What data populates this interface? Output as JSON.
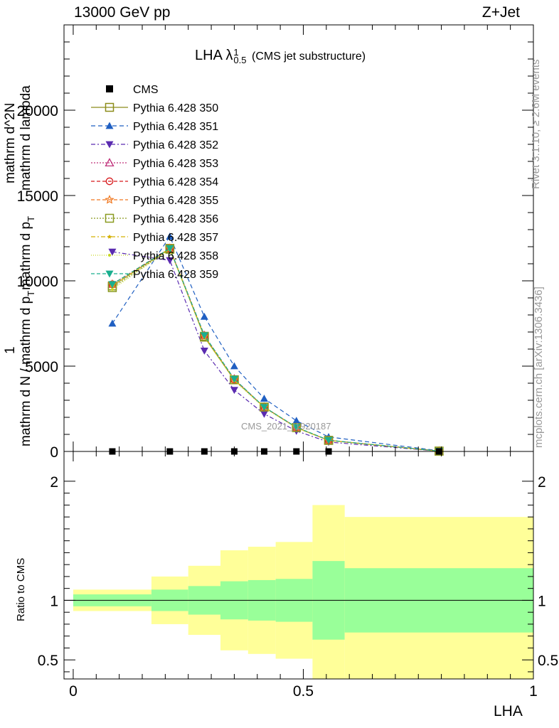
{
  "header": {
    "left": "13000 GeV pp",
    "right": "Z+Jet"
  },
  "side": {
    "rivet": "Rivet 3.1.10, ≥ 2.6M events",
    "mcplots": "mcplots.cern.ch [arXiv:1306.3436]"
  },
  "watermark": "CMS_2021_I1920187",
  "chart_data": [
    {
      "type": "line",
      "title": "LHA λ",
      "title_sup": "1",
      "title_sub": "0.5",
      "title_suffix": "(CMS jet substructure)",
      "ylabel_parts": [
        "1",
        "mathrm d N / mathrm d p",
        "T",
        "mathrm d p",
        "T",
        "mathrm d^2N",
        "mathrm d lambda"
      ],
      "ylim": [
        0,
        25000
      ],
      "xlim": [
        -0.02,
        1.0
      ],
      "y_ticks": [
        0,
        5000,
        10000,
        15000,
        20000
      ],
      "y_tick_labels": [
        "0",
        "5000",
        "10000",
        "15000",
        "20000"
      ],
      "legend_position": "top-left",
      "grid": false,
      "cms_x": [
        0.085,
        0.21,
        0.285,
        0.35,
        0.415,
        0.485,
        0.555,
        0.795
      ],
      "cms_y": [
        0,
        0,
        0,
        0,
        0,
        0,
        0,
        0
      ],
      "series": [
        {
          "name": "CMS",
          "marker": "filled-square",
          "color": "#000000",
          "dash": "none"
        },
        {
          "name": "Pythia 6.428 350",
          "marker": "open-square",
          "color": "#8c8c1a",
          "dash": "none",
          "x": [
            0.085,
            0.21,
            0.285,
            0.35,
            0.415,
            0.485,
            0.555,
            0.795
          ],
          "y": [
            9700,
            11900,
            6700,
            4200,
            2600,
            1400,
            650,
            20
          ]
        },
        {
          "name": "Pythia 6.428 351",
          "marker": "filled-triangle-up",
          "color": "#1f5fc2",
          "dash": "6,4",
          "x": [
            0.085,
            0.21,
            0.285,
            0.35,
            0.415,
            0.485,
            0.555,
            0.795
          ],
          "y": [
            7500,
            12600,
            7900,
            5000,
            3100,
            1800,
            850,
            40
          ]
        },
        {
          "name": "Pythia 6.428 352",
          "marker": "filled-triangle-down",
          "color": "#5a2bb0",
          "dash": "6,3,2,3",
          "x": [
            0.085,
            0.21,
            0.285,
            0.35,
            0.415,
            0.485,
            0.555,
            0.795
          ],
          "y": [
            11700,
            11200,
            5900,
            3600,
            2200,
            1200,
            550,
            15
          ]
        },
        {
          "name": "Pythia 6.428 353",
          "marker": "open-triangle-up",
          "color": "#c0307a",
          "dash": "2,2",
          "x": [
            0.085,
            0.21,
            0.285,
            0.35,
            0.415,
            0.485,
            0.555,
            0.795
          ],
          "y": [
            9800,
            11900,
            6800,
            4250,
            2600,
            1400,
            650,
            20
          ]
        },
        {
          "name": "Pythia 6.428 354",
          "marker": "open-circle",
          "color": "#d7191c",
          "dash": "5,3",
          "x": [
            0.085,
            0.21,
            0.285,
            0.35,
            0.415,
            0.485,
            0.555,
            0.795
          ],
          "y": [
            9800,
            11900,
            6800,
            4200,
            2600,
            1400,
            650,
            20
          ]
        },
        {
          "name": "Pythia 6.428 355",
          "marker": "open-star",
          "color": "#f07820",
          "dash": "5,3",
          "x": [
            0.085,
            0.21,
            0.285,
            0.35,
            0.415,
            0.485,
            0.555,
            0.795
          ],
          "y": [
            9800,
            11900,
            6750,
            4200,
            2600,
            1400,
            650,
            20
          ]
        },
        {
          "name": "Pythia 6.428 356",
          "marker": "open-square",
          "color": "#8a9a20",
          "dash": "2,2",
          "x": [
            0.085,
            0.21,
            0.285,
            0.35,
            0.415,
            0.485,
            0.555,
            0.795
          ],
          "y": [
            9600,
            11850,
            6750,
            4200,
            2600,
            1400,
            650,
            20
          ]
        },
        {
          "name": "Pythia 6.428 357",
          "marker": "small-star",
          "color": "#d4b000",
          "dash": "6,3,2,3",
          "x": [
            0.085,
            0.21,
            0.285,
            0.35,
            0.415,
            0.485,
            0.555,
            0.795
          ],
          "y": [
            9700,
            11900,
            6750,
            4200,
            2600,
            1400,
            650,
            20
          ]
        },
        {
          "name": "Pythia 6.428 358",
          "marker": "small-dot",
          "color": "#c8d820",
          "dash": "1,2",
          "x": [
            0.085,
            0.21,
            0.285,
            0.35,
            0.415,
            0.485,
            0.555,
            0.795
          ],
          "y": [
            9500,
            11850,
            6700,
            4150,
            2550,
            1380,
            640,
            20
          ]
        },
        {
          "name": "Pythia 6.428 359",
          "marker": "filled-triangle-down",
          "color": "#1aaf8f",
          "dash": "5,3",
          "x": [
            0.085,
            0.21,
            0.285,
            0.35,
            0.415,
            0.485,
            0.555,
            0.795
          ],
          "y": [
            9800,
            11900,
            6800,
            4250,
            2600,
            1420,
            660,
            20
          ]
        }
      ]
    },
    {
      "type": "area",
      "ylabel": "Ratio to CMS",
      "xlabel": "LHA",
      "ylim": [
        0.34,
        2.25
      ],
      "xlim": [
        -0.02,
        1.0
      ],
      "reference_line": 1,
      "y_ticks": [
        0.5,
        1,
        2
      ],
      "y_tick_labels": [
        "0.5",
        "1",
        "2"
      ],
      "x_ticks": [
        0,
        0.5,
        1
      ],
      "x_tick_labels": [
        "0",
        "0.5",
        "1"
      ],
      "bin_edges": [
        0,
        0.17,
        0.25,
        0.32,
        0.38,
        0.44,
        0.52,
        0.59,
        1.0
      ],
      "inner_band_color": "#99ff99",
      "outer_band_color": "#ffff99",
      "inner_band": {
        "lo": [
          0.95,
          0.91,
          0.88,
          0.84,
          0.83,
          0.82,
          0.67,
          0.73
        ],
        "hi": [
          1.05,
          1.09,
          1.12,
          1.16,
          1.17,
          1.18,
          1.33,
          1.27
        ]
      },
      "outer_band": {
        "lo": [
          0.91,
          0.8,
          0.71,
          0.58,
          0.55,
          0.51,
          0.34,
          0.34
        ],
        "hi": [
          1.09,
          1.2,
          1.29,
          1.42,
          1.45,
          1.49,
          1.8,
          1.7
        ]
      }
    }
  ]
}
